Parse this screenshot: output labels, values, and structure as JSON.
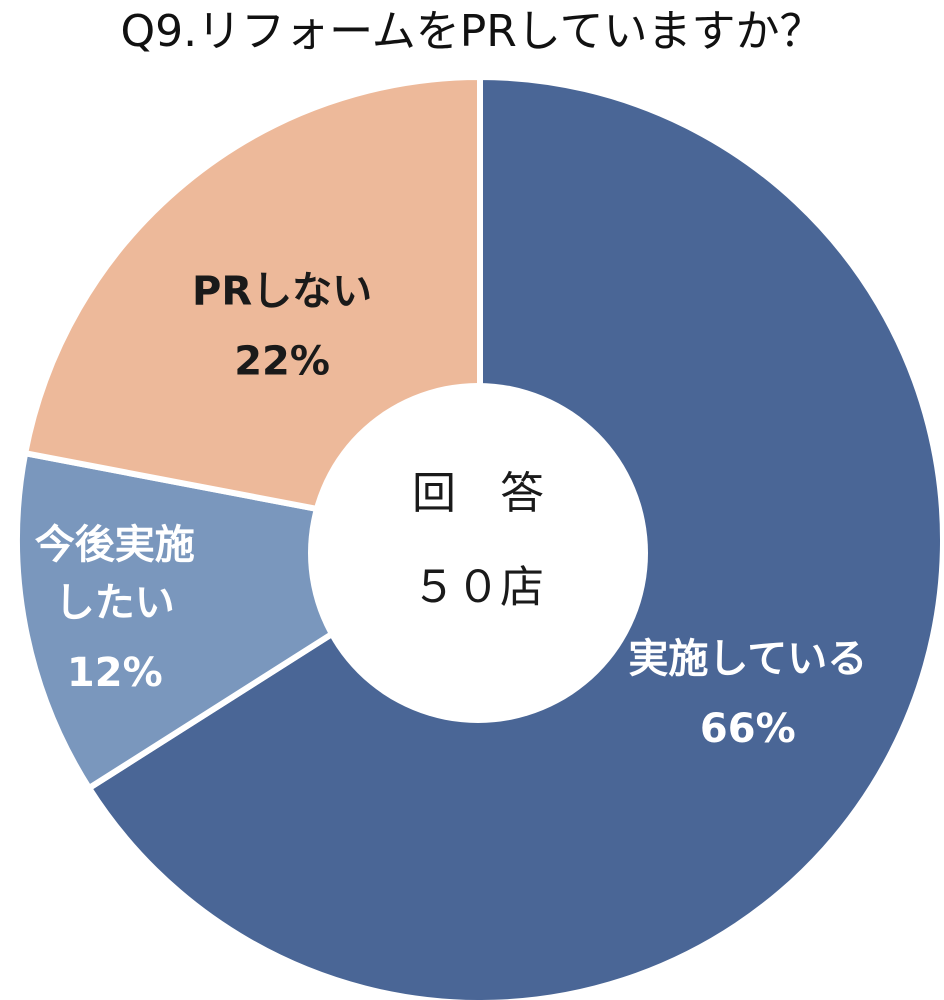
{
  "chart_data": {
    "type": "pie",
    "variant": "donut",
    "title": "Q9.リフォームをPRしていますか？",
    "center_label": [
      "回　答",
      "５０店"
    ],
    "slices": [
      {
        "label_lines": [
          "実施している"
        ],
        "value": 66,
        "value_label": "66%",
        "color": "#4a6696",
        "label_color": "#ffffff"
      },
      {
        "label_lines": [
          "今後実施",
          "したい"
        ],
        "value": 12,
        "value_label": "12%",
        "color": "#7a97bd",
        "label_color": "#ffffff"
      },
      {
        "label_lines": [
          "PRしない"
        ],
        "value": 22,
        "value_label": "22%",
        "color": "#edb99a",
        "label_color": "#1a1a1a"
      }
    ],
    "start": "12 o'clock",
    "direction": "clockwise",
    "legend": "none"
  }
}
